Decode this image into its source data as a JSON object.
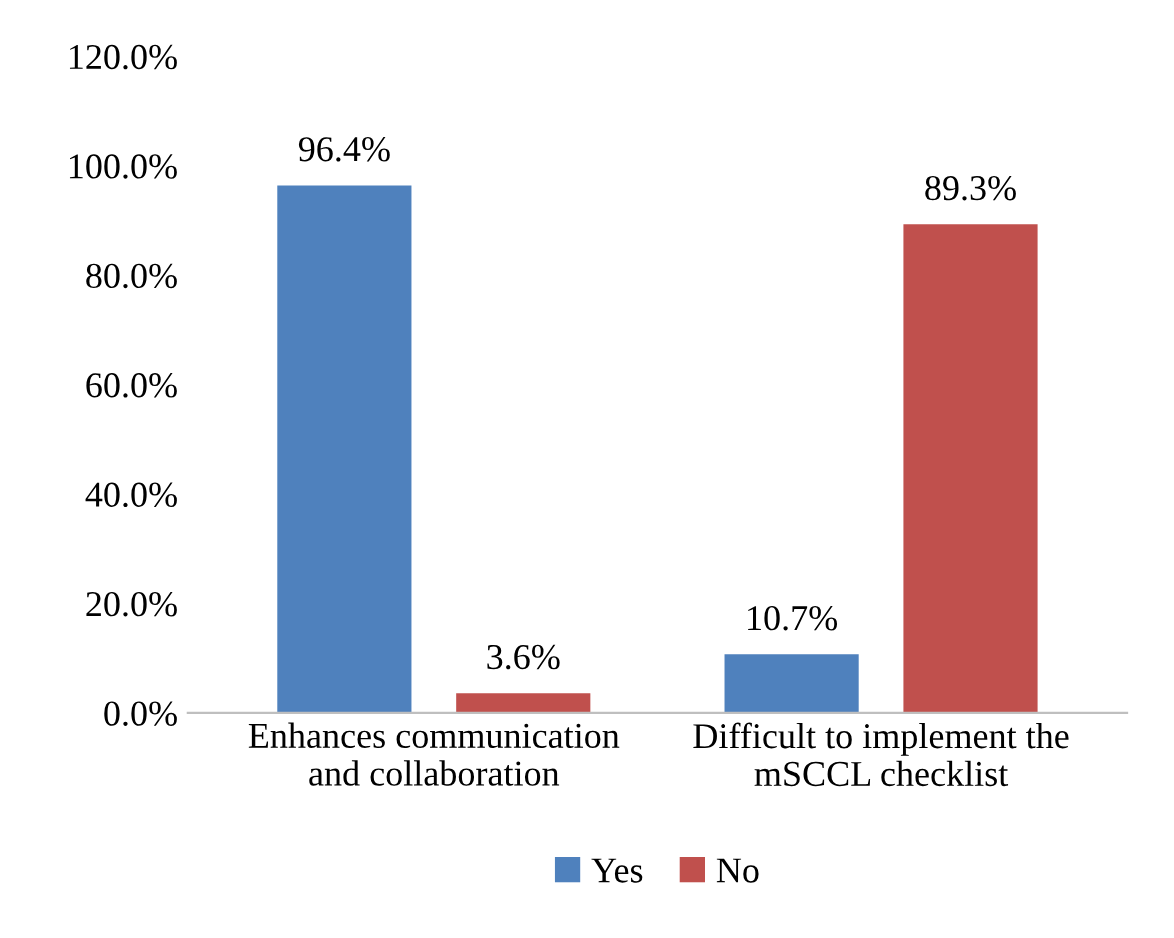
{
  "chart_data": {
    "type": "bar",
    "categories": [
      "Enhances communication\nand collaboration",
      "Difficult to implement the\nmSCCL checklist"
    ],
    "series": [
      {
        "name": "Yes",
        "color": "#4f81bd",
        "values": [
          96.4,
          10.7
        ],
        "value_labels": [
          "96.4%",
          "10.7%"
        ]
      },
      {
        "name": "No",
        "color": "#c0504d",
        "values": [
          3.6,
          89.3
        ],
        "value_labels": [
          "3.6%",
          "89.3%"
        ]
      }
    ],
    "ylim": [
      0,
      120
    ],
    "yticks": [
      {
        "value": 0,
        "label": "0.0%"
      },
      {
        "value": 20,
        "label": "20.0%"
      },
      {
        "value": 40,
        "label": "40.0%"
      },
      {
        "value": 60,
        "label": "60.0%"
      },
      {
        "value": 80,
        "label": "80.0%"
      },
      {
        "value": 100,
        "label": "100.0%"
      },
      {
        "value": 120,
        "label": "120.0%"
      }
    ],
    "legend": "bottom",
    "grid": false
  }
}
